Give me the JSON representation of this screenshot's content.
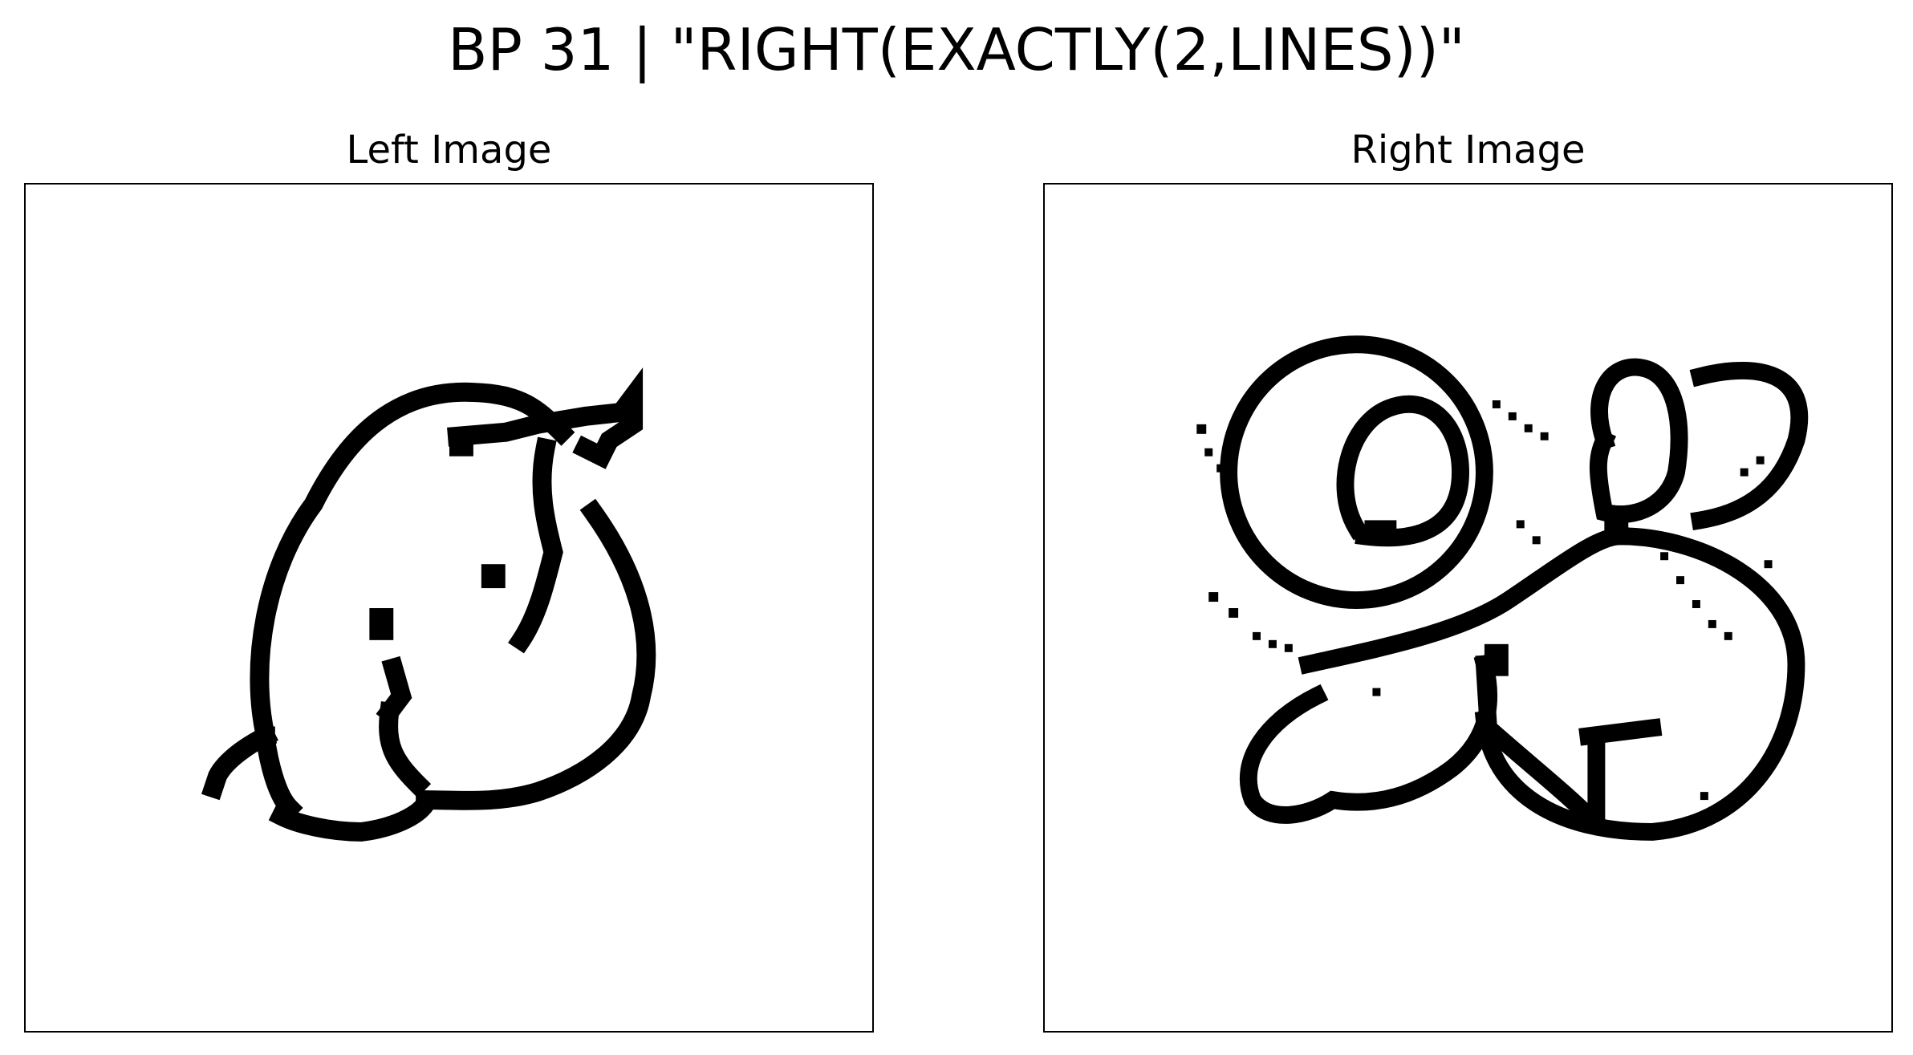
{
  "figure": {
    "title": "BP 31 | \"RIGHT(EXACTLY(2,LINES))\""
  },
  "panels": [
    {
      "title": "Left Image"
    },
    {
      "title": "Right Image"
    }
  ],
  "colors": {
    "ink": "#000000",
    "background": "#ffffff",
    "frame": "#000000"
  }
}
